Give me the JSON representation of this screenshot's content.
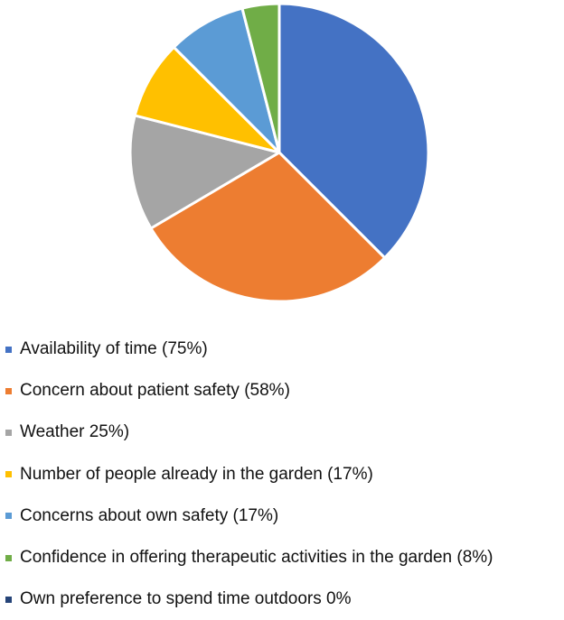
{
  "chart_data": {
    "type": "pie",
    "legend_position": "bottom",
    "slices": [
      {
        "label": "Availability of time (75%)",
        "value": 75,
        "color": "#4472C4"
      },
      {
        "label": "Concern about patient safety (58%)",
        "value": 58,
        "color": "#ED7D31"
      },
      {
        "label": "Weather 25%)",
        "value": 25,
        "color": "#A5A5A5"
      },
      {
        "label": "Number of people already in the garden (17%)",
        "value": 17,
        "color": "#FFC000"
      },
      {
        "label": "Concerns about own safety (17%)",
        "value": 17,
        "color": "#5B9BD5"
      },
      {
        "label": "Confidence in offering therapeutic activities in the garden (8%)",
        "value": 8,
        "color": "#70AD47"
      },
      {
        "label": "Own preference to spend time outdoors 0%",
        "value": 0,
        "color": "#264478"
      }
    ]
  }
}
